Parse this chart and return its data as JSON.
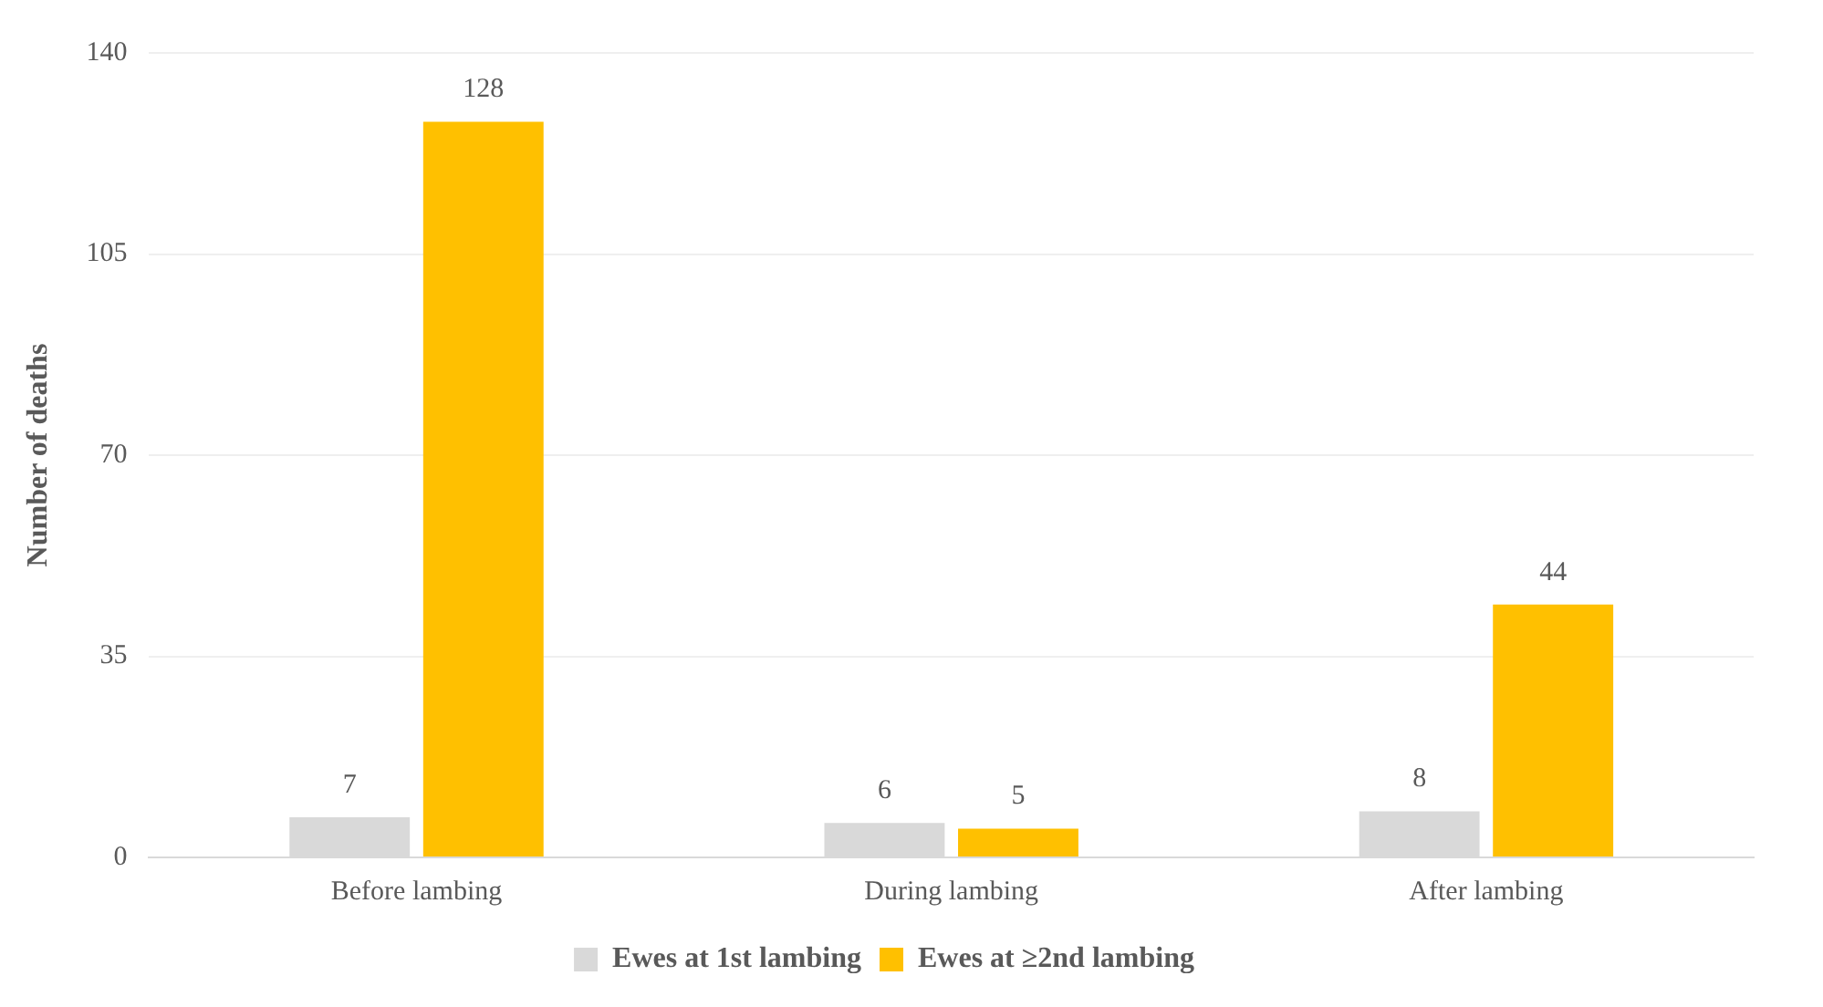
{
  "chart_data": {
    "type": "bar",
    "ylabel": "Number of deaths",
    "categories": [
      "Before lambing",
      "During lambing",
      "After lambing"
    ],
    "series": [
      {
        "name": "Ewes at 1st lambing",
        "color": "#d9d9d9",
        "values": [
          7,
          6,
          8
        ]
      },
      {
        "name": "Ewes at ≥2nd lambing",
        "color": "#ffc000",
        "values": [
          128,
          5,
          44
        ]
      }
    ],
    "ylim": [
      0,
      140
    ],
    "yticks": [
      0,
      35,
      70,
      105,
      140
    ],
    "grid": "y",
    "legend": "bottom",
    "data_labels": true
  }
}
